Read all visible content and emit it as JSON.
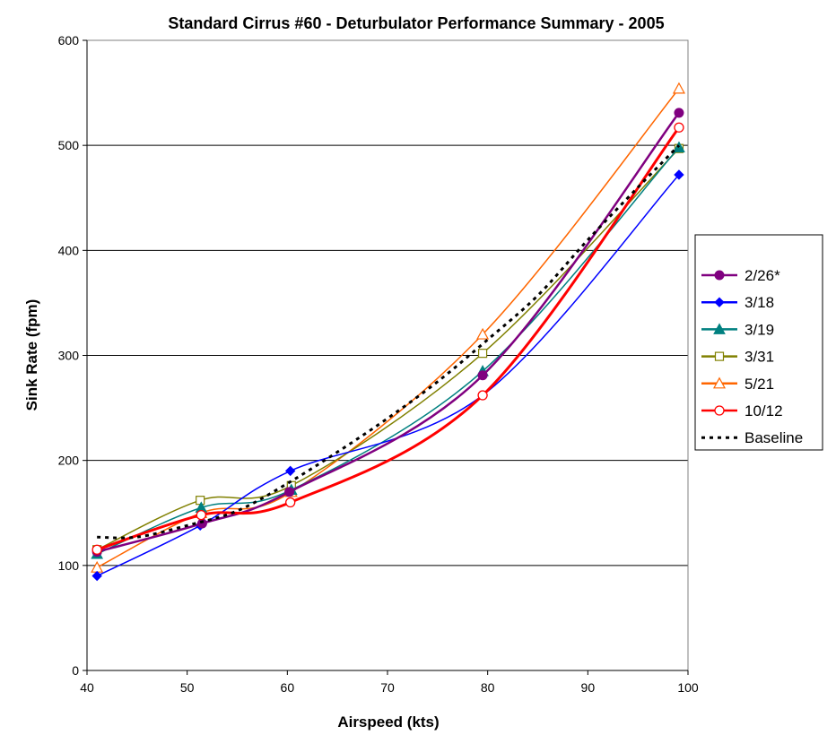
{
  "chart_data": {
    "type": "line",
    "title": "Standard Cirrus #60 - Deturbulator Performance Summary - 2005",
    "xlabel": "Airspeed (kts)",
    "ylabel": "Sink Rate (fpm)",
    "xlim": [
      40,
      100
    ],
    "ylim": [
      0,
      600
    ],
    "xticks": [
      40,
      50,
      60,
      70,
      80,
      90,
      100
    ],
    "yticks": [
      0,
      100,
      200,
      300,
      400,
      500,
      600
    ],
    "grid": "horizontal",
    "legend_position": "right",
    "series": [
      {
        "name": "2/26*",
        "color": "#800080",
        "marker": "circle-filled",
        "dash": false,
        "x": [
          41,
          51.5,
          60.2,
          79.5,
          99.1
        ],
        "y": [
          113,
          140,
          170,
          281,
          531
        ]
      },
      {
        "name": "3/18",
        "color": "#0000ff",
        "marker": "diamond-filled",
        "dash": false,
        "x": [
          41,
          51.3,
          60.3,
          79.5,
          99.1
        ],
        "y": [
          90,
          138,
          190,
          262,
          472
        ]
      },
      {
        "name": "3/19",
        "color": "#008080",
        "marker": "triangle-filled",
        "dash": false,
        "x": [
          41,
          51.4,
          60.4,
          79.5,
          99.1
        ],
        "y": [
          111,
          155,
          172,
          285,
          498
        ]
      },
      {
        "name": "3/31",
        "color": "#808000",
        "marker": "square-open",
        "dash": false,
        "x": [
          41,
          51.3,
          60.4,
          79.5,
          99.1
        ],
        "y": [
          115,
          162,
          176,
          302,
          497
        ]
      },
      {
        "name": "5/21",
        "color": "#ff6600",
        "marker": "triangle-open",
        "dash": false,
        "x": [
          41,
          51.4,
          60.4,
          79.5,
          99.1
        ],
        "y": [
          98,
          150,
          170,
          320,
          554
        ]
      },
      {
        "name": "10/12",
        "color": "#ff0000",
        "marker": "circle-open",
        "dash": false,
        "x": [
          41,
          51.4,
          60.3,
          79.5,
          99.1
        ],
        "y": [
          115,
          148,
          160,
          262,
          517
        ]
      },
      {
        "name": "Baseline",
        "color": "#000000",
        "marker": "none",
        "dash": true,
        "x": [
          41,
          45,
          50,
          55,
          60,
          65,
          70,
          75,
          80,
          85,
          90,
          95,
          99.1
        ],
        "y": [
          127,
          127,
          138,
          152,
          178,
          208,
          240,
          275,
          315,
          357,
          410,
          460,
          500
        ]
      }
    ]
  }
}
